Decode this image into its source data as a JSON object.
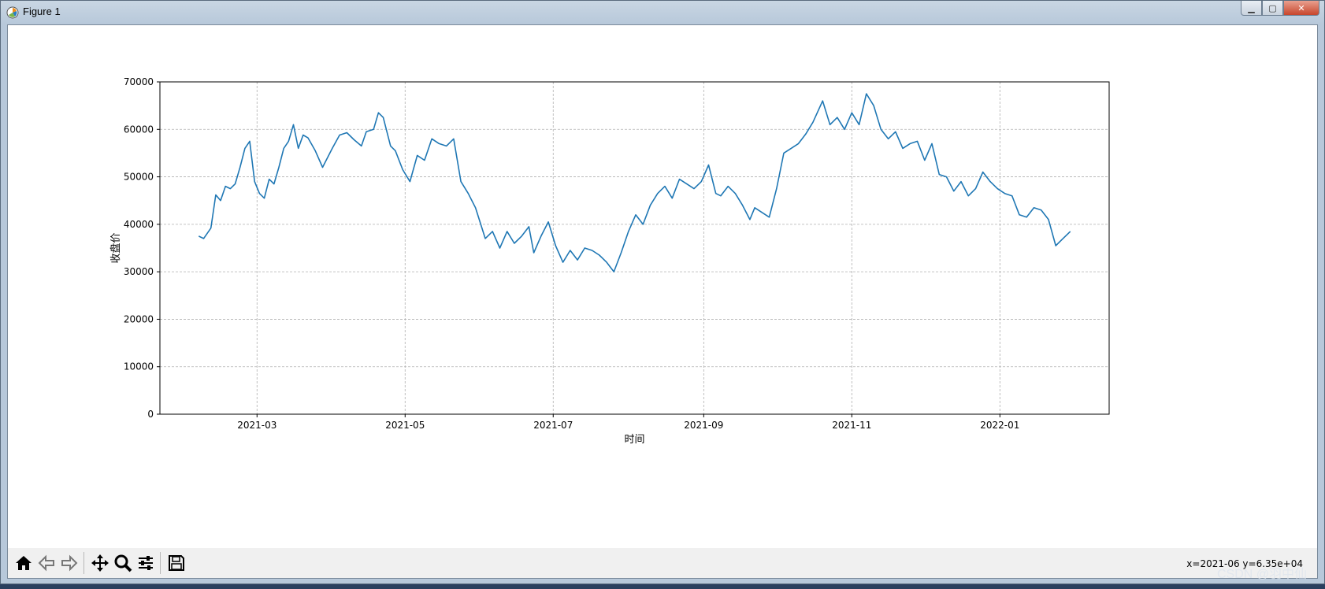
{
  "window": {
    "title": "Figure 1",
    "controls": {
      "minimize": "▁",
      "maximize": "▢",
      "close": "✕"
    }
  },
  "toolbar": {
    "buttons": [
      {
        "icon": "home-icon",
        "label": "Home"
      },
      {
        "icon": "back-arrow-icon",
        "label": "Back"
      },
      {
        "icon": "forward-arrow-icon",
        "label": "Forward"
      },
      {
        "icon": "pan-icon",
        "label": "Pan"
      },
      {
        "icon": "zoom-icon",
        "label": "Zoom"
      },
      {
        "icon": "subplots-config-icon",
        "label": "Configure subplots"
      },
      {
        "icon": "save-icon",
        "label": "Save"
      }
    ],
    "coordinate_readout": "x=2021-06 y=6.35e+04"
  },
  "watermark": "CSDN @羽中仙",
  "colors": {
    "line": "#1f77b4",
    "grid": "#b0b0b0",
    "toolbar_bg": "#f0f0f0"
  },
  "chart_data": {
    "type": "line",
    "title": "",
    "xlabel": "时间",
    "ylabel": "收盘价",
    "grid": true,
    "grid_style": "dashed",
    "xlim": [
      "2021-01-20",
      "2022-02-15"
    ],
    "ylim": [
      0,
      70000
    ],
    "yticks": [
      0,
      10000,
      20000,
      30000,
      40000,
      50000,
      60000,
      70000
    ],
    "xticks": [
      "2021-03",
      "2021-05",
      "2021-07",
      "2021-09",
      "2021-11",
      "2022-01"
    ],
    "series": [
      {
        "x": [
          "2021-02-05",
          "2021-02-07",
          "2021-02-10",
          "2021-02-12",
          "2021-02-14",
          "2021-02-16",
          "2021-02-18",
          "2021-02-20",
          "2021-02-22",
          "2021-02-24",
          "2021-02-26",
          "2021-02-28",
          "2021-03-02",
          "2021-03-04",
          "2021-03-06",
          "2021-03-08",
          "2021-03-10",
          "2021-03-12",
          "2021-03-14",
          "2021-03-16",
          "2021-03-18",
          "2021-03-20",
          "2021-03-22",
          "2021-03-25",
          "2021-03-28",
          "2021-04-01",
          "2021-04-04",
          "2021-04-07",
          "2021-04-10",
          "2021-04-13",
          "2021-04-15",
          "2021-04-18",
          "2021-04-20",
          "2021-04-22",
          "2021-04-25",
          "2021-04-27",
          "2021-04-30",
          "2021-05-03",
          "2021-05-06",
          "2021-05-09",
          "2021-05-12",
          "2021-05-15",
          "2021-05-18",
          "2021-05-21",
          "2021-05-24",
          "2021-05-27",
          "2021-05-30",
          "2021-06-03",
          "2021-06-06",
          "2021-06-09",
          "2021-06-12",
          "2021-06-15",
          "2021-06-18",
          "2021-06-21",
          "2021-06-23",
          "2021-06-26",
          "2021-06-29",
          "2021-07-02",
          "2021-07-05",
          "2021-07-08",
          "2021-07-11",
          "2021-07-14",
          "2021-07-17",
          "2021-07-20",
          "2021-07-23",
          "2021-07-26",
          "2021-07-29",
          "2021-08-01",
          "2021-08-04",
          "2021-08-07",
          "2021-08-10",
          "2021-08-13",
          "2021-08-16",
          "2021-08-19",
          "2021-08-22",
          "2021-08-25",
          "2021-08-28",
          "2021-08-31",
          "2021-09-03",
          "2021-09-06",
          "2021-09-08",
          "2021-09-11",
          "2021-09-14",
          "2021-09-17",
          "2021-09-20",
          "2021-09-22",
          "2021-09-25",
          "2021-09-28",
          "2021-10-01",
          "2021-10-04",
          "2021-10-07",
          "2021-10-10",
          "2021-10-13",
          "2021-10-16",
          "2021-10-20",
          "2021-10-23",
          "2021-10-26",
          "2021-10-29",
          "2021-11-01",
          "2021-11-04",
          "2021-11-07",
          "2021-11-10",
          "2021-11-13",
          "2021-11-16",
          "2021-11-19",
          "2021-11-22",
          "2021-11-25",
          "2021-11-28",
          "2021-12-01",
          "2021-12-04",
          "2021-12-07",
          "2021-12-10",
          "2021-12-13",
          "2021-12-16",
          "2021-12-19",
          "2021-12-22",
          "2021-12-25",
          "2021-12-28",
          "2021-12-31",
          "2022-01-03",
          "2022-01-06",
          "2022-01-09",
          "2022-01-12",
          "2022-01-15",
          "2022-01-18",
          "2022-01-21",
          "2022-01-24",
          "2022-01-27",
          "2022-01-30"
        ],
        "values": [
          37500,
          37000,
          39200,
          46200,
          45000,
          48000,
          47500,
          48500,
          52000,
          56000,
          57500,
          49000,
          46500,
          45500,
          49500,
          48500,
          52000,
          56000,
          57500,
          61000,
          56000,
          58800,
          58200,
          55500,
          52000,
          56000,
          58800,
          59300,
          57800,
          56500,
          59500,
          60000,
          63500,
          62500,
          56500,
          55500,
          51500,
          49000,
          54500,
          53500,
          58000,
          57000,
          56500,
          58000,
          49000,
          46500,
          43500,
          37000,
          38500,
          35000,
          38500,
          36000,
          37500,
          39500,
          34000,
          37500,
          40500,
          35500,
          32000,
          34500,
          32500,
          35000,
          34500,
          33500,
          32000,
          30000,
          34000,
          38500,
          42000,
          40000,
          44000,
          46500,
          48000,
          45500,
          49500,
          48500,
          47500,
          49000,
          52500,
          46500,
          46000,
          48000,
          46500,
          44000,
          41000,
          43500,
          42500,
          41500,
          47500,
          55000,
          56000,
          57000,
          59000,
          61500,
          66000,
          61000,
          62500,
          60000,
          63500,
          61000,
          67500,
          65000,
          60000,
          58000,
          59500,
          56000,
          57000,
          57500,
          53500,
          57000,
          50500,
          50000,
          47000,
          49000,
          46000,
          47500,
          51000,
          49000,
          47500,
          46500,
          46000,
          42000,
          41500,
          43500,
          43000,
          41000,
          35500,
          37000,
          38500
        ]
      }
    ]
  }
}
